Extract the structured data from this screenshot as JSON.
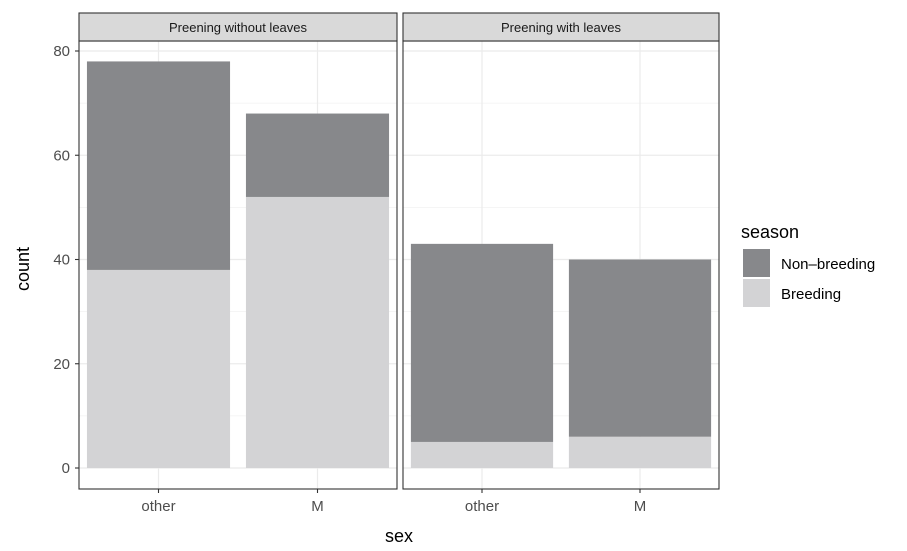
{
  "chart_data": {
    "type": "bar",
    "stacked": true,
    "facet_by": "panel",
    "xlabel": "sex",
    "ylabel": "count",
    "ylim": [
      0,
      82
    ],
    "y_ticks": [
      0,
      20,
      40,
      60,
      80
    ],
    "categories": [
      "other",
      "M"
    ],
    "grid": true,
    "legend": {
      "title": "season",
      "placement": "right",
      "entries": [
        {
          "name": "Non–breeding",
          "color": "#87888b"
        },
        {
          "name": "Breeding",
          "color": "#d3d3d5"
        }
      ]
    },
    "panels": [
      {
        "title": "Preening without leaves",
        "series": [
          {
            "name": "Breeding",
            "values": [
              38,
              52
            ]
          },
          {
            "name": "Non–breeding",
            "values": [
              40,
              16
            ]
          }
        ]
      },
      {
        "title": "Preening with leaves",
        "series": [
          {
            "name": "Breeding",
            "values": [
              5,
              6
            ]
          },
          {
            "name": "Non–breeding",
            "values": [
              38,
              34
            ]
          }
        ]
      }
    ]
  }
}
